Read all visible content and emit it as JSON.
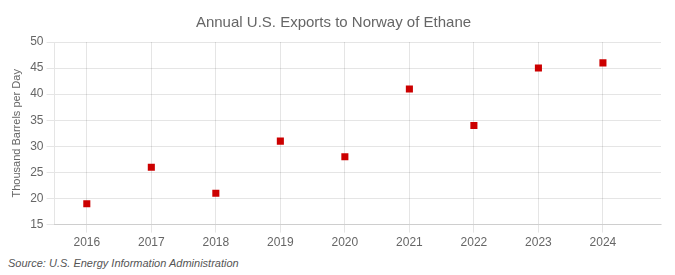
{
  "chart_data": {
    "type": "scatter",
    "title": "Annual U.S. Exports to Norway of Ethane",
    "ylabel": "Thousand Barrels per Day",
    "source": "Source: U.S. Energy Information Administration",
    "x": [
      2016,
      2017,
      2018,
      2019,
      2020,
      2021,
      2022,
      2023,
      2024
    ],
    "values": [
      19.0,
      26.0,
      21.0,
      31.0,
      28.0,
      41.0,
      34.0,
      45.0,
      46.0
    ],
    "color": "#cc0000",
    "marker": "square",
    "xlim": [
      2015.5,
      2024.9
    ],
    "xticks": [
      2016,
      2017,
      2018,
      2019,
      2020,
      2021,
      2022,
      2023,
      2024
    ],
    "ylim": [
      15,
      50
    ],
    "yticks": [
      15,
      20,
      25,
      30,
      35,
      40,
      45,
      50
    ],
    "grid": true
  }
}
